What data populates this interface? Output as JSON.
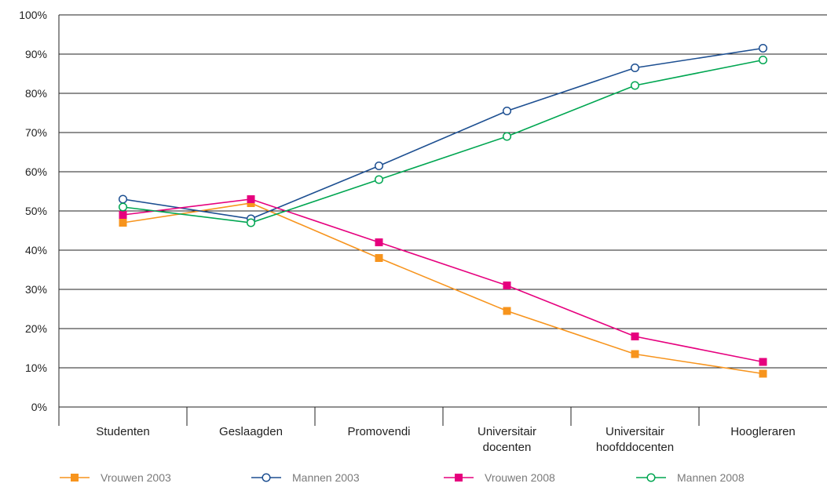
{
  "chart_data": {
    "type": "line",
    "categories": [
      [
        "Studenten"
      ],
      [
        "Geslaagden"
      ],
      [
        "Promovendi"
      ],
      [
        "Universitair",
        "docenten"
      ],
      [
        "Universitair",
        "hoofddocenten"
      ],
      [
        "Hoogleraren"
      ]
    ],
    "y_ticks": [
      "0%",
      "10%",
      "20%",
      "30%",
      "40%",
      "50%",
      "60%",
      "70%",
      "80%",
      "90%",
      "100%"
    ],
    "ylim": [
      0,
      100
    ],
    "grid": true,
    "legend_position": "bottom",
    "series": [
      {
        "name": "Vrouwen 2003",
        "color": "#f7941d",
        "marker": "square-filled",
        "values": [
          47,
          52,
          38,
          24.5,
          13.5,
          8.5
        ]
      },
      {
        "name": "Mannen 2003",
        "color": "#1d4f91",
        "marker": "circle-open",
        "values": [
          53,
          48,
          61.5,
          75.5,
          86.5,
          91.5
        ]
      },
      {
        "name": "Vrouwen 2008",
        "color": "#e6007e",
        "marker": "square-filled",
        "values": [
          49,
          53,
          42,
          31,
          18,
          11.5
        ]
      },
      {
        "name": "Mannen 2008",
        "color": "#00a651",
        "marker": "circle-open",
        "values": [
          51,
          47,
          58,
          69,
          82,
          88.5
        ]
      }
    ]
  }
}
